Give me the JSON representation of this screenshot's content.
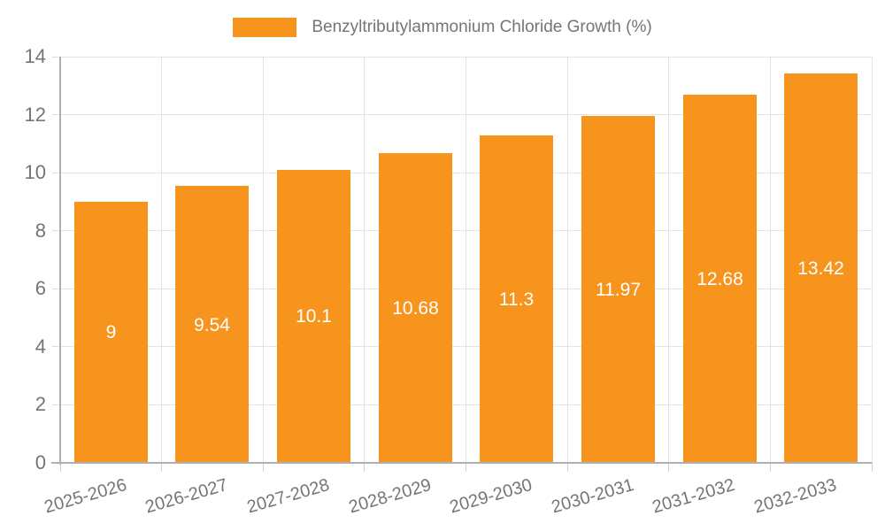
{
  "legend": {
    "label": "Benzyltributylammonium Chloride Growth (%)"
  },
  "colors": {
    "bar": "#F7941E",
    "grid": "#E3E3E3",
    "axis": "#B0B0B0",
    "tick": "#CCCCCC",
    "text": "#757575",
    "value_label": "#FFFFFF",
    "background": "#FFFFFF"
  },
  "chart_data": {
    "type": "bar",
    "title": "Benzyltributylammonium Chloride Growth (%)",
    "categories": [
      "2025-2026",
      "2026-2027",
      "2027-2028",
      "2028-2029",
      "2029-2030",
      "2030-2031",
      "2031-2032",
      "2032-2033"
    ],
    "series": [
      {
        "name": "Benzyltributylammonium Chloride Growth (%)",
        "values": [
          9,
          9.54,
          10.1,
          10.68,
          11.3,
          11.97,
          12.68,
          13.42
        ],
        "value_labels": [
          "9",
          "9.54",
          "10.1",
          "10.68",
          "11.3",
          "11.97",
          "12.68",
          "13.42"
        ]
      }
    ],
    "xlabel": "",
    "ylabel": "",
    "ylim": [
      0,
      14
    ],
    "ytick_step": 2,
    "yticks": [
      0,
      2,
      4,
      6,
      8,
      10,
      12,
      14
    ],
    "grid": true,
    "legend_position": "top-center",
    "value_label_position": "inside-center",
    "x_label_rotation_deg": -16
  }
}
